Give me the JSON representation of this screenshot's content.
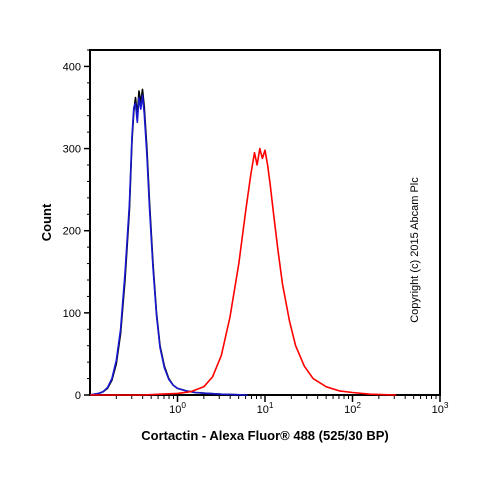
{
  "chart": {
    "type": "histogram",
    "background_color": "#ffffff",
    "plot_border_color": "#000000",
    "plot_border_width": 2,
    "ylabel": "Count",
    "xlabel": "Cortactin - Alexa Fluor® 488 (525/30 BP)",
    "label_fontsize": 13,
    "label_fontweight": "bold",
    "tick_fontsize": 11,
    "y": {
      "min": 0,
      "max": 420,
      "ticks": [
        0,
        100,
        200,
        300,
        400
      ],
      "minor_step": 20
    },
    "x": {
      "type": "log",
      "min": -1,
      "max": 3,
      "major_ticks": [
        0,
        1,
        2,
        3
      ],
      "major_labels": [
        "10^0",
        "10^1",
        "10^2",
        "10^3"
      ]
    },
    "series": [
      {
        "name": "black",
        "color": "#000000",
        "line_width": 1.6,
        "points": [
          [
            -1.0,
            0
          ],
          [
            -0.95,
            1
          ],
          [
            -0.9,
            2
          ],
          [
            -0.85,
            4
          ],
          [
            -0.8,
            8
          ],
          [
            -0.75,
            18
          ],
          [
            -0.7,
            38
          ],
          [
            -0.65,
            75
          ],
          [
            -0.6,
            140
          ],
          [
            -0.55,
            225
          ],
          [
            -0.52,
            310
          ],
          [
            -0.5,
            345
          ],
          [
            -0.48,
            362
          ],
          [
            -0.46,
            340
          ],
          [
            -0.44,
            370
          ],
          [
            -0.42,
            355
          ],
          [
            -0.4,
            372
          ],
          [
            -0.38,
            350
          ],
          [
            -0.35,
            300
          ],
          [
            -0.32,
            235
          ],
          [
            -0.28,
            160
          ],
          [
            -0.24,
            100
          ],
          [
            -0.2,
            60
          ],
          [
            -0.15,
            35
          ],
          [
            -0.1,
            20
          ],
          [
            -0.05,
            12
          ],
          [
            0.0,
            8
          ],
          [
            0.1,
            5
          ],
          [
            0.2,
            3
          ],
          [
            0.35,
            2
          ],
          [
            0.5,
            1
          ],
          [
            0.8,
            0
          ]
        ]
      },
      {
        "name": "blue",
        "color": "#1818d0",
        "line_width": 1.6,
        "points": [
          [
            -1.0,
            0
          ],
          [
            -0.95,
            1
          ],
          [
            -0.9,
            2
          ],
          [
            -0.85,
            4
          ],
          [
            -0.8,
            9
          ],
          [
            -0.75,
            20
          ],
          [
            -0.7,
            42
          ],
          [
            -0.65,
            80
          ],
          [
            -0.6,
            148
          ],
          [
            -0.55,
            232
          ],
          [
            -0.52,
            315
          ],
          [
            -0.5,
            350
          ],
          [
            -0.48,
            355
          ],
          [
            -0.46,
            332
          ],
          [
            -0.44,
            362
          ],
          [
            -0.42,
            348
          ],
          [
            -0.4,
            365
          ],
          [
            -0.38,
            342
          ],
          [
            -0.35,
            292
          ],
          [
            -0.32,
            228
          ],
          [
            -0.28,
            155
          ],
          [
            -0.24,
            97
          ],
          [
            -0.2,
            58
          ],
          [
            -0.15,
            33
          ],
          [
            -0.1,
            19
          ],
          [
            -0.05,
            12
          ],
          [
            0.0,
            8
          ],
          [
            0.1,
            5
          ],
          [
            0.2,
            3
          ],
          [
            0.35,
            2
          ],
          [
            0.5,
            1
          ],
          [
            0.8,
            0
          ]
        ]
      },
      {
        "name": "red",
        "color": "#ff0000",
        "line_width": 1.6,
        "points": [
          [
            -1.0,
            0
          ],
          [
            -0.6,
            0
          ],
          [
            -0.4,
            0
          ],
          [
            -0.2,
            1
          ],
          [
            0.0,
            2
          ],
          [
            0.15,
            4
          ],
          [
            0.3,
            10
          ],
          [
            0.4,
            22
          ],
          [
            0.5,
            48
          ],
          [
            0.6,
            95
          ],
          [
            0.7,
            160
          ],
          [
            0.78,
            225
          ],
          [
            0.84,
            270
          ],
          [
            0.88,
            295
          ],
          [
            0.91,
            280
          ],
          [
            0.94,
            300
          ],
          [
            0.97,
            288
          ],
          [
            1.0,
            298
          ],
          [
            1.03,
            280
          ],
          [
            1.06,
            255
          ],
          [
            1.1,
            218
          ],
          [
            1.15,
            175
          ],
          [
            1.2,
            135
          ],
          [
            1.28,
            90
          ],
          [
            1.35,
            60
          ],
          [
            1.45,
            35
          ],
          [
            1.55,
            20
          ],
          [
            1.7,
            10
          ],
          [
            1.85,
            5
          ],
          [
            2.0,
            3
          ],
          [
            2.2,
            1
          ],
          [
            2.5,
            0
          ]
        ]
      }
    ]
  },
  "copyright": "Copyright (c) 2015 Abcam Plc"
}
